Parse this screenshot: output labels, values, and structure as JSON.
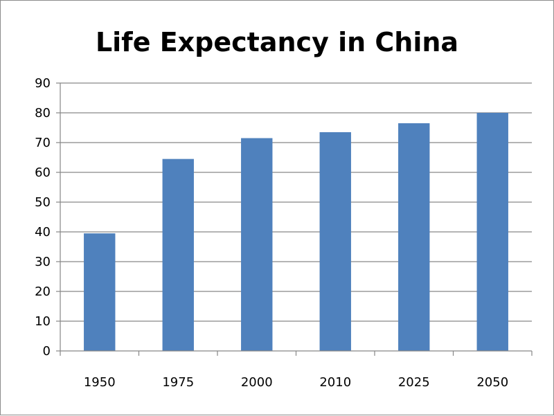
{
  "chart_data": {
    "type": "bar",
    "title": "Life Expectancy in China",
    "categories": [
      "1950",
      "1975",
      "2000",
      "2010",
      "2025",
      "2050"
    ],
    "values": [
      39.5,
      64.5,
      71.5,
      73.5,
      76.5,
      80
    ],
    "ylim": [
      0,
      90
    ],
    "ytick_step": 10,
    "grid": true,
    "legend": "none",
    "bar_color": "#4f81bd",
    "grid_color": "#868686"
  }
}
